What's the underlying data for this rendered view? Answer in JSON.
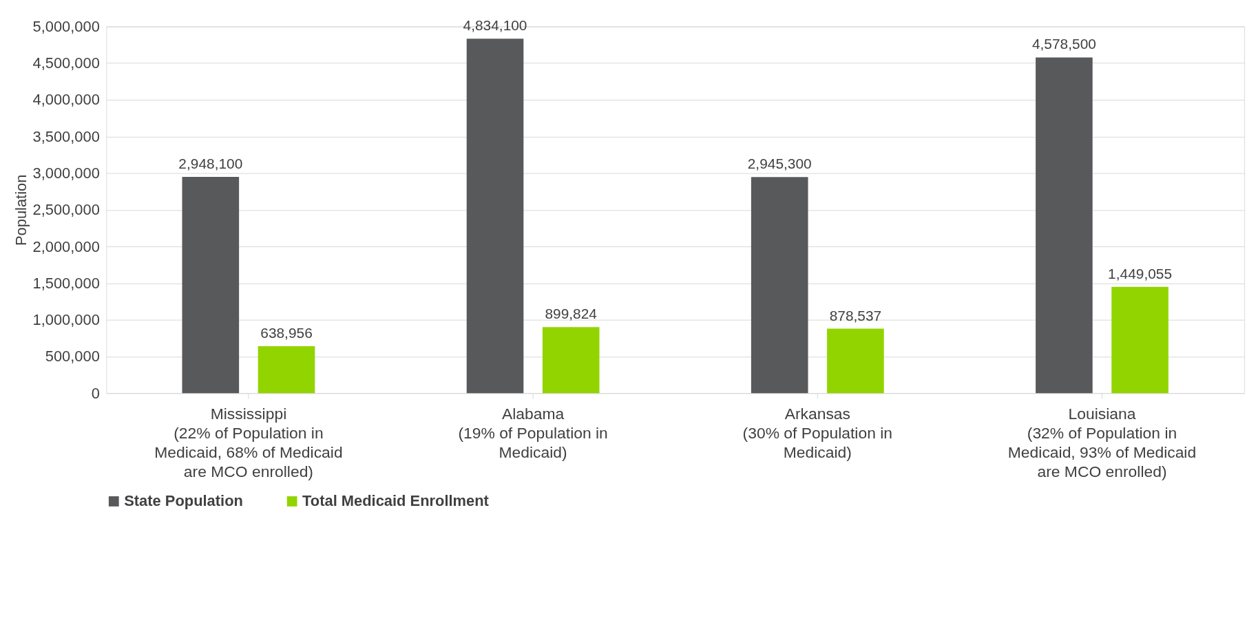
{
  "chart_data": {
    "type": "bar",
    "categories": [
      "Mississippi\n(22% of Population in\nMedicaid, 68% of Medicaid\nare MCO enrolled)",
      "Alabama\n(19% of Population in\nMedicaid)",
      "Arkansas\n(30% of Population in\nMedicaid)",
      "Louisiana\n(32% of Population in\nMedicaid, 93% of Medicaid\nare MCO enrolled)"
    ],
    "series": [
      {
        "name": "State Population",
        "color": "#58595b",
        "values": [
          2948100,
          4834100,
          2945300,
          4578500
        ],
        "value_labels": [
          "2,948,100",
          "4,834,100",
          "2,945,300",
          "4,578,500"
        ]
      },
      {
        "name": "Total Medicaid Enrollment",
        "color": "#92d400",
        "values": [
          638956,
          899824,
          878537,
          1449055
        ],
        "value_labels": [
          "638,956",
          "899,824",
          "878,537",
          "1,449,055"
        ]
      }
    ],
    "ylabel": "Population",
    "ylim": [
      0,
      5000000
    ],
    "yticks": [
      0,
      {
        "value": 500000,
        "label": "500,000"
      },
      {
        "value": 1000000,
        "label": "1,000,000"
      },
      {
        "value": 1500000,
        "label": "1,500,000"
      },
      {
        "value": 2000000,
        "label": "2,000,000"
      },
      {
        "value": 2500000,
        "label": "2,500,000"
      },
      {
        "value": 3000000,
        "label": "3,000,000"
      },
      {
        "value": 3500000,
        "label": "3,500,000"
      },
      {
        "value": 4000000,
        "label": "4,000,000"
      },
      {
        "value": 4500000,
        "label": "4,500,000"
      },
      {
        "value": 5000000,
        "label": "5,000,000"
      }
    ],
    "grid": "y",
    "legend": "bottom"
  }
}
